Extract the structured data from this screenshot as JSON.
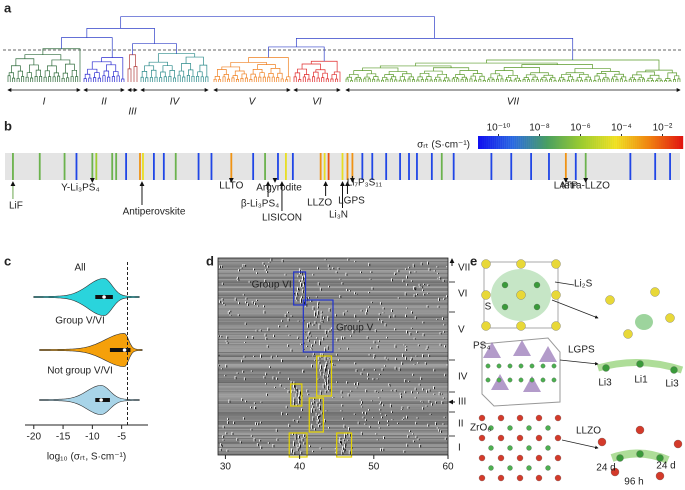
{
  "chart_data": [
    {
      "panel": "a",
      "type": "dendrogram",
      "clusters": [
        {
          "name": "I",
          "color": "#2f6b3b"
        },
        {
          "name": "II",
          "color": "#2b2bd0"
        },
        {
          "name": "III",
          "color": "#b03a3a"
        },
        {
          "name": "IV",
          "color": "#2a8a8a"
        },
        {
          "name": "V",
          "color": "#f08020"
        },
        {
          "name": "VI",
          "color": "#e02828"
        },
        {
          "name": "VII",
          "color": "#5a9a2a"
        }
      ],
      "link_color": "#3040c8"
    },
    {
      "panel": "b",
      "type": "barcode",
      "colorbar_label": "σᵣₜ (S·cm⁻¹)",
      "colorbar_lim": [
        -11,
        -1
      ],
      "colorbar_ticks": [
        {
          "value": -10,
          "label": "10⁻¹⁰"
        },
        {
          "value": -8,
          "label": "10⁻⁸"
        },
        {
          "value": -6,
          "label": "10⁻⁶"
        },
        {
          "value": -4,
          "label": "10⁻⁴"
        },
        {
          "value": -2,
          "label": "10⁻²"
        }
      ],
      "colormap": [
        "#1010f0",
        "#2a6ae0",
        "#4aa060",
        "#9ccc30",
        "#f0e020",
        "#f08010",
        "#e01010"
      ],
      "xlim": [
        0,
        680
      ],
      "x": [
        8,
        35,
        60,
        72,
        88,
        92,
        108,
        112,
        122,
        136,
        139,
        150,
        160,
        172,
        195,
        208,
        228,
        250,
        262,
        275,
        283,
        290,
        318,
        322,
        326,
        340,
        345,
        350,
        360,
        370,
        384,
        398,
        407,
        415,
        430,
        440,
        452,
        490,
        510,
        530,
        548,
        565,
        575,
        585,
        630,
        655,
        670
      ],
      "values": [
        -7,
        -7,
        -7,
        -10,
        -7,
        -6,
        -7,
        -7,
        -10,
        -3,
        -4.5,
        -10,
        -10,
        -7,
        -10,
        -10,
        -3,
        -10,
        -7,
        -10,
        -4.5,
        -10,
        -3,
        -4.5,
        -2,
        -4.5,
        -3,
        -3,
        -10,
        -10,
        -10,
        -10,
        -10,
        -10,
        -10,
        -7,
        -10,
        -10,
        -10,
        -10,
        -10,
        -3,
        -10,
        -7,
        -10,
        -10,
        -10
      ],
      "annotations": [
        {
          "text": "LiF",
          "x": 8,
          "color": "#6aa84f"
        },
        {
          "text": "Y-Li₃PS₄",
          "x": 88,
          "color": "#6aa84f"
        },
        {
          "text": "Antiperovskite",
          "x": 138,
          "color": "#c0504d"
        },
        {
          "text": "LLTO",
          "x": 228,
          "color": "#c0504d"
        },
        {
          "text": "β-Li₃PS₄",
          "x": 265,
          "color": "#c0504d"
        },
        {
          "text": "Argyrodite",
          "x": 272,
          "color": "#c0504d"
        },
        {
          "text": "LISICON",
          "x": 279,
          "color": "#c0504d"
        },
        {
          "text": "LLZO",
          "x": 323,
          "color": "#c0504d"
        },
        {
          "text": "Li₃N",
          "x": 340,
          "color": "#c0504d"
        },
        {
          "text": "LGPS",
          "x": 345,
          "color": "#c0504d"
        },
        {
          "text": "Li₇P₃S₁₁",
          "x": 350,
          "color": "#c0504d"
        },
        {
          "text": "LATP",
          "x": 565,
          "color": "#c0504d"
        },
        {
          "text": "tetra-LLZO",
          "x": 585,
          "color": "#6aa84f"
        }
      ]
    },
    {
      "panel": "c",
      "type": "violin",
      "x_label": "log₁₀ (σᵣₜ, S·cm⁻¹)",
      "xlim": [
        -21.5,
        -0.5
      ],
      "xticks": [
        -20,
        -15,
        -10,
        -5
      ],
      "threshold": -4,
      "series": [
        {
          "name": "All",
          "color": "#2ad4dc",
          "min": -20,
          "q1": -9.5,
          "median": -8,
          "q3": -6.5,
          "max": -2
        },
        {
          "name": "Group V/VI",
          "color": "#f5a00a",
          "min": -19,
          "q1": -7,
          "median": -4.5,
          "q3": -3.5,
          "max": -1.5
        },
        {
          "name": "Not group V/VI",
          "color": "#a8d4e8",
          "min": -19,
          "q1": -9.5,
          "median": -8.5,
          "q3": -7,
          "max": -2
        }
      ]
    },
    {
      "panel": "d",
      "type": "heatmap",
      "xlim": [
        29,
        60
      ],
      "xticks": [
        30,
        40,
        50,
        60
      ],
      "groups": [
        "I",
        "II",
        "III",
        "IV",
        "V",
        "VI",
        "VII"
      ],
      "boxes": [
        {
          "label": "Group VI",
          "color": "#2233cc",
          "x": [
            39.2,
            40.8
          ]
        },
        {
          "label": "Group V",
          "color": "#2233cc",
          "x": [
            40.5,
            44.5
          ]
        },
        {
          "color": "#e6d400",
          "x": [
            42.3,
            44.3
          ]
        },
        {
          "color": "#e6d400",
          "x": [
            38.8,
            40.3
          ]
        },
        {
          "color": "#e6d400",
          "x": [
            41.3,
            43.2
          ]
        },
        {
          "color": "#e6d400",
          "x": [
            38.6,
            41
          ]
        },
        {
          "color": "#e6d400",
          "x": [
            45,
            47
          ]
        }
      ]
    }
  ],
  "structures": {
    "panel": "e",
    "labels": [
      "Li₂S",
      "S",
      "PS₄",
      "LGPS",
      "Li3",
      "Li1",
      "Li3",
      "ZrO₆",
      "LLZO",
      "24 d",
      "96 h",
      "24 d"
    ]
  }
}
